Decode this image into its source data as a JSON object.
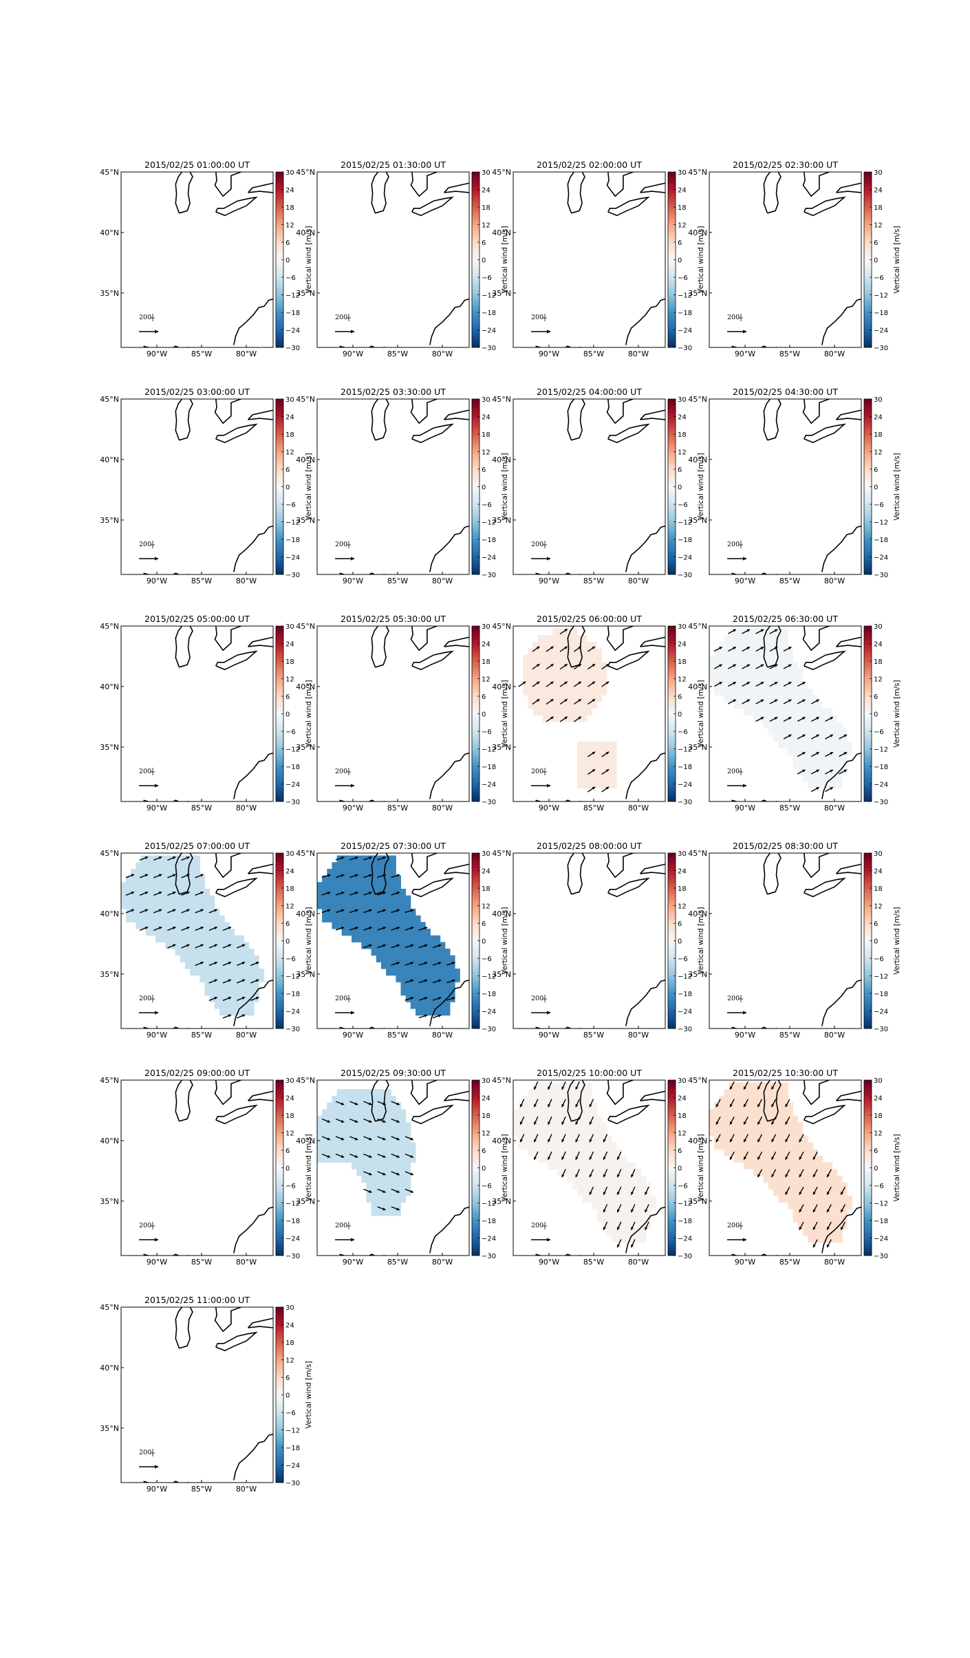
{
  "chart_data": {
    "type": "heatmap",
    "field": "vertical wind with horizontal wind quiver",
    "panel_titles": [
      "2015/02/25 01:00:00 UT",
      "2015/02/25 01:30:00 UT",
      "2015/02/25 02:00:00 UT",
      "2015/02/25 02:30:00 UT",
      "2015/02/25 03:00:00 UT",
      "2015/02/25 03:30:00 UT",
      "2015/02/25 04:00:00 UT",
      "2015/02/25 04:30:00 UT",
      "2015/02/25 05:00:00 UT",
      "2015/02/25 05:30:00 UT",
      "2015/02/25 06:00:00 UT",
      "2015/02/25 06:30:00 UT",
      "2015/02/25 07:00:00 UT",
      "2015/02/25 07:30:00 UT",
      "2015/02/25 08:00:00 UT",
      "2015/02/25 08:30:00 UT",
      "2015/02/25 09:00:00 UT",
      "2015/02/25 09:30:00 UT",
      "2015/02/25 10:00:00 UT",
      "2015/02/25 10:30:00 UT",
      "2015/02/25 11:00:00 UT"
    ],
    "x_ticks": [
      "90°W",
      "85°W",
      "80°W"
    ],
    "y_ticks": [
      "45°N",
      "40°N",
      "35°N"
    ],
    "lon_range": [
      -94,
      -77
    ],
    "lat_range": [
      30.5,
      45
    ],
    "tick_lons": [
      -90,
      -85,
      -80
    ],
    "tick_lats": [
      45,
      40,
      35
    ],
    "colorbar": {
      "label": "Vertical wind [m/s]",
      "ticks": [
        "30",
        "24",
        "18",
        "12",
        "6",
        "0",
        "−6",
        "−12",
        "−18",
        "−24",
        "−30"
      ],
      "range": [
        -30,
        30
      ],
      "colormap": "RdBu_r"
    },
    "quiver_key_label": "200",
    "panels": [
      {
        "value": null
      },
      {
        "value": null
      },
      {
        "value": null
      },
      {
        "value": null
      },
      {
        "value": null
      },
      {
        "value": null
      },
      {
        "value": null
      },
      {
        "value": null
      },
      {
        "value": null
      },
      {
        "value": null
      },
      {
        "value": 3,
        "region": "north+south"
      },
      {
        "value": -1,
        "region": "diagonal"
      },
      {
        "value": -7,
        "region": "diagonal"
      },
      {
        "value": -20,
        "region": "diagonal"
      },
      {
        "value": null
      },
      {
        "value": null
      },
      {
        "value": null
      },
      {
        "value": -7,
        "region": "central"
      },
      {
        "value": 1,
        "region": "diagonal"
      },
      {
        "value": 5,
        "region": "diagonal"
      },
      {
        "value": null
      }
    ]
  }
}
